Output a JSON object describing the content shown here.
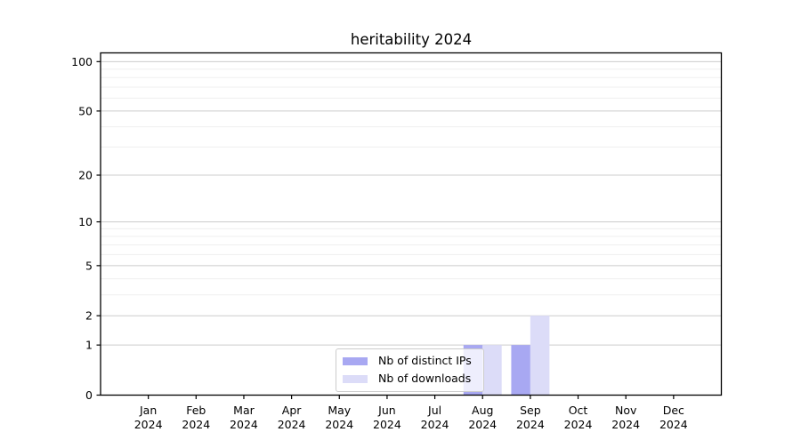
{
  "figure": {
    "background": "#ffffff"
  },
  "chart_data": {
    "type": "bar",
    "title": "heritability 2024",
    "categories": [
      "Jan",
      "Feb",
      "Mar",
      "Apr",
      "May",
      "Jun",
      "Jul",
      "Aug",
      "Sep",
      "Oct",
      "Nov",
      "Dec"
    ],
    "category_year_line": "2024",
    "series": [
      {
        "name": "Nb of distinct IPs",
        "color": "#a8a8f2",
        "values": [
          0,
          0,
          0,
          0,
          0,
          0,
          0,
          1,
          1,
          0,
          0,
          0
        ]
      },
      {
        "name": "Nb of downloads",
        "color": "#dcdcf8",
        "values": [
          0,
          0,
          0,
          0,
          0,
          0,
          0,
          1,
          2,
          0,
          0,
          0
        ]
      }
    ],
    "y_scale": "log1p",
    "y_major_ticks": [
      0,
      1,
      2,
      5,
      10,
      20,
      50,
      100
    ],
    "y_minor_ticks": [
      3,
      4,
      6,
      7,
      8,
      9,
      30,
      40,
      60,
      70,
      80,
      90
    ],
    "ylim": [
      0,
      113
    ],
    "grid": true,
    "legend_position": "lower center",
    "colors": {
      "major_grid": "#cccccc",
      "minor_grid": "#efefef",
      "axis": "#000000",
      "tick_text": "#000000",
      "legend_border": "#cccccc"
    }
  }
}
